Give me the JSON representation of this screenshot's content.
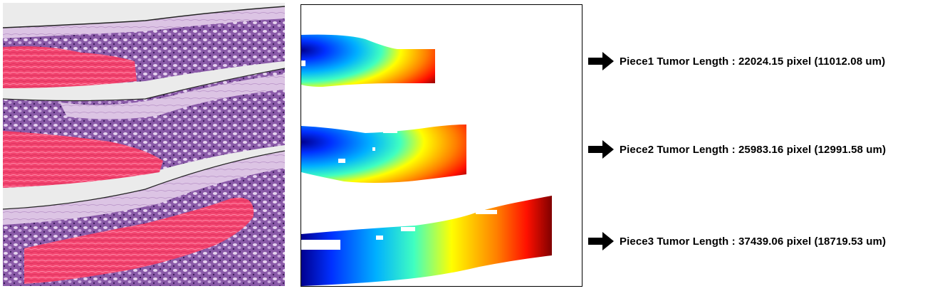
{
  "results": [
    {
      "label": "Piece1 Tumor Length : 22024.15 pixel (11012.08 um)"
    },
    {
      "label": "Piece2 Tumor Length : 25983.16 pixel (12991.58 um)"
    },
    {
      "label": "Piece3 Tumor Length : 37439.06 pixel (18719.53 um)"
    }
  ],
  "colors": {
    "tissue_purple": "#7a4e98",
    "tumor_pink": "#f0406e",
    "stroma_light": "#d9bfe0",
    "background_gray": "#ebebeb",
    "jet_gradient": [
      "#00008f",
      "#0040ff",
      "#00c0ff",
      "#40ffc0",
      "#ffff00",
      "#ff8000",
      "#ff0000",
      "#800000"
    ]
  }
}
